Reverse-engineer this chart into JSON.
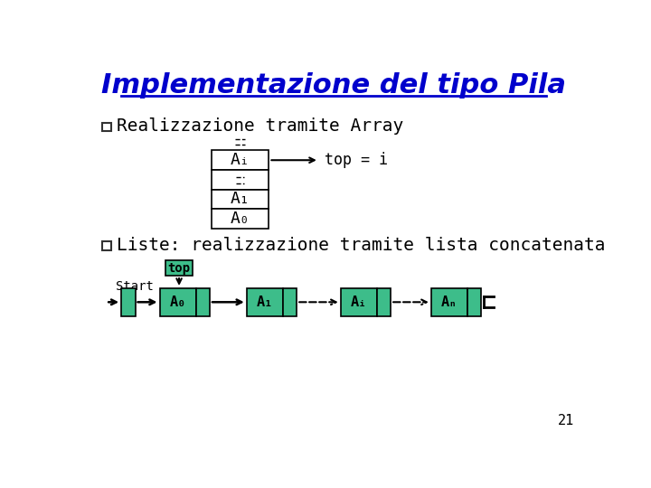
{
  "title": "Implementazione del tipo Pila",
  "title_color": "#0000CC",
  "bg_color": "#FFFFFF",
  "bullet1": "Realizzazione tramite Array",
  "bullet2": "Liste: realizzazione tramite lista concatenata",
  "top_label": "top = i",
  "top_box_label": "top",
  "start_label": "Start",
  "page_number": "21",
  "green": "#3DBD8A",
  "node_labels": [
    "A₀",
    "A₁",
    "Aᵢ",
    "Aₙ"
  ],
  "array_labels_top": "Aᵢ",
  "array_label_mid1": "A₁",
  "array_label_mid2": "A₀"
}
